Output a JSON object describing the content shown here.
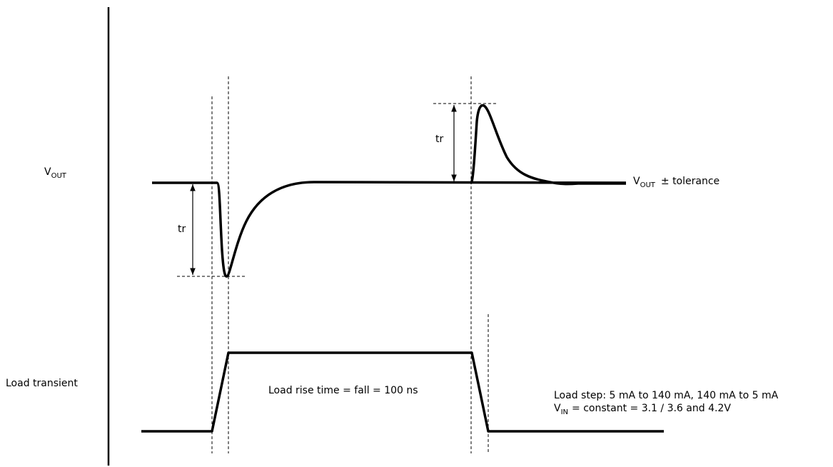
{
  "labels": {
    "vout": {
      "main": "V",
      "sub": "OUT"
    },
    "load_transient": "Load transient"
  },
  "annotations": {
    "tr_drop": "tr",
    "tr_rise": "tr",
    "vout_tolerance": {
      "main": "V",
      "sub": "OUT",
      "rest": "± tolerance"
    },
    "rise_time": "Load rise time = fall = 100 ns",
    "load_step": "Load step: 5 mA to 140 mA, 140 mA to 5 mA",
    "vin": {
      "main": "V",
      "sub": "IN",
      "rest": "= constant = 3.1 / 3.6 and 4.2V"
    }
  }
}
